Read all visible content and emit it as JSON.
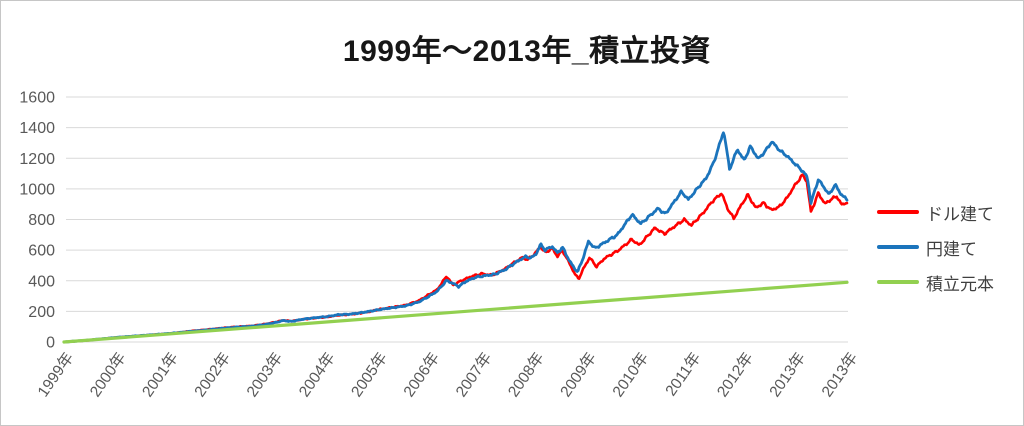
{
  "page": {
    "background": "#ffffff",
    "border_color": "#c6c6c6"
  },
  "chart_data": {
    "type": "line",
    "title": "1999年～2013年_積立投資",
    "xlabel": "",
    "ylabel": "",
    "x_range": [
      0,
      15
    ],
    "y_range": [
      0,
      1600
    ],
    "y_ticks": [
      0,
      200,
      400,
      600,
      800,
      1000,
      1200,
      1400,
      1600
    ],
    "x_tick_labels": [
      "1999年",
      "2000年",
      "2001年",
      "2002年",
      "2003年",
      "2004年",
      "2005年",
      "2006年",
      "2007年",
      "2008年",
      "2009年",
      "2010年",
      "2011年",
      "2012年",
      "2013年",
      "2013年"
    ],
    "grid": "horizontal",
    "legend_position": "right",
    "axis_label_color": "#595959",
    "grid_color": "#d9d9d9",
    "series": [
      {
        "name": "ドル建て",
        "color": "#ff0000",
        "points": [
          [
            0,
            0
          ],
          [
            0.35,
            8
          ],
          [
            0.7,
            19
          ],
          [
            1.0,
            29
          ],
          [
            1.4,
            39
          ],
          [
            1.8,
            49
          ],
          [
            2.1,
            57
          ],
          [
            2.45,
            72
          ],
          [
            2.75,
            81
          ],
          [
            3.0,
            90
          ],
          [
            3.3,
            99
          ],
          [
            3.6,
            105
          ],
          [
            3.85,
            117
          ],
          [
            4.05,
            130
          ],
          [
            4.2,
            142
          ],
          [
            4.35,
            136
          ],
          [
            4.6,
            149
          ],
          [
            4.85,
            158
          ],
          [
            5.05,
            164
          ],
          [
            5.25,
            175
          ],
          [
            5.45,
            179
          ],
          [
            5.65,
            187
          ],
          [
            5.85,
            198
          ],
          [
            6.05,
            214
          ],
          [
            6.3,
            227
          ],
          [
            6.55,
            241
          ],
          [
            6.8,
            270
          ],
          [
            7.0,
            312
          ],
          [
            7.15,
            342
          ],
          [
            7.33,
            430
          ],
          [
            7.45,
            372
          ],
          [
            7.6,
            398
          ],
          [
            7.8,
            428
          ],
          [
            8.0,
            446
          ],
          [
            8.2,
            436
          ],
          [
            8.45,
            478
          ],
          [
            8.62,
            518
          ],
          [
            8.78,
            552
          ],
          [
            8.88,
            538
          ],
          [
            9.0,
            570
          ],
          [
            9.13,
            622
          ],
          [
            9.22,
            584
          ],
          [
            9.35,
            612
          ],
          [
            9.45,
            560
          ],
          [
            9.55,
            598
          ],
          [
            9.68,
            516
          ],
          [
            9.79,
            442
          ],
          [
            9.86,
            412
          ],
          [
            9.95,
            478
          ],
          [
            10.07,
            552
          ],
          [
            10.2,
            492
          ],
          [
            10.35,
            545
          ],
          [
            10.62,
            598
          ],
          [
            10.88,
            670
          ],
          [
            11.02,
            632
          ],
          [
            11.32,
            745
          ],
          [
            11.5,
            706
          ],
          [
            11.88,
            800
          ],
          [
            12.02,
            762
          ],
          [
            12.25,
            845
          ],
          [
            12.42,
            918
          ],
          [
            12.6,
            972
          ],
          [
            12.7,
            880
          ],
          [
            12.83,
            806
          ],
          [
            12.95,
            880
          ],
          [
            13.1,
            962
          ],
          [
            13.25,
            876
          ],
          [
            13.4,
            908
          ],
          [
            13.55,
            862
          ],
          [
            13.7,
            882
          ],
          [
            13.85,
            940
          ],
          [
            13.99,
            1018
          ],
          [
            14.15,
            1092
          ],
          [
            14.23,
            1048
          ],
          [
            14.31,
            848
          ],
          [
            14.45,
            972
          ],
          [
            14.58,
            902
          ],
          [
            14.68,
            928
          ],
          [
            14.8,
            952
          ],
          [
            14.9,
            896
          ],
          [
            15,
            912
          ]
        ]
      },
      {
        "name": "円建て",
        "color": "#1b74bc",
        "points": [
          [
            0,
            0
          ],
          [
            0.35,
            9
          ],
          [
            0.7,
            20
          ],
          [
            1.0,
            30
          ],
          [
            1.4,
            40
          ],
          [
            1.8,
            50
          ],
          [
            2.1,
            58
          ],
          [
            2.45,
            70
          ],
          [
            2.75,
            79
          ],
          [
            3.0,
            88
          ],
          [
            3.3,
            97
          ],
          [
            3.6,
            103
          ],
          [
            3.85,
            114
          ],
          [
            4.05,
            127
          ],
          [
            4.2,
            140
          ],
          [
            4.35,
            134
          ],
          [
            4.6,
            150
          ],
          [
            4.85,
            160
          ],
          [
            5.05,
            166
          ],
          [
            5.25,
            178
          ],
          [
            5.45,
            181
          ],
          [
            5.65,
            189
          ],
          [
            5.85,
            200
          ],
          [
            6.05,
            212
          ],
          [
            6.3,
            224
          ],
          [
            6.55,
            236
          ],
          [
            6.8,
            262
          ],
          [
            7.0,
            300
          ],
          [
            7.15,
            332
          ],
          [
            7.33,
            402
          ],
          [
            7.45,
            383
          ],
          [
            7.56,
            362
          ],
          [
            7.7,
            396
          ],
          [
            7.88,
            422
          ],
          [
            8.05,
            432
          ],
          [
            8.25,
            442
          ],
          [
            8.45,
            472
          ],
          [
            8.6,
            508
          ],
          [
            8.75,
            540
          ],
          [
            8.85,
            558
          ],
          [
            8.95,
            548
          ],
          [
            9.05,
            578
          ],
          [
            9.13,
            638
          ],
          [
            9.22,
            600
          ],
          [
            9.35,
            625
          ],
          [
            9.45,
            582
          ],
          [
            9.55,
            618
          ],
          [
            9.68,
            532
          ],
          [
            9.77,
            485
          ],
          [
            9.84,
            458
          ],
          [
            9.93,
            535
          ],
          [
            10.05,
            658
          ],
          [
            10.17,
            612
          ],
          [
            10.32,
            642
          ],
          [
            10.6,
            700
          ],
          [
            10.88,
            832
          ],
          [
            11.05,
            772
          ],
          [
            11.38,
            872
          ],
          [
            11.52,
            836
          ],
          [
            11.83,
            982
          ],
          [
            11.96,
            930
          ],
          [
            12.2,
            1030
          ],
          [
            12.3,
            1068
          ],
          [
            12.45,
            1175
          ],
          [
            12.55,
            1282
          ],
          [
            12.64,
            1378
          ],
          [
            12.75,
            1128
          ],
          [
            12.9,
            1258
          ],
          [
            13.03,
            1186
          ],
          [
            13.15,
            1278
          ],
          [
            13.3,
            1196
          ],
          [
            13.42,
            1240
          ],
          [
            13.56,
            1308
          ],
          [
            13.72,
            1248
          ],
          [
            13.85,
            1215
          ],
          [
            13.99,
            1168
          ],
          [
            14.14,
            1120
          ],
          [
            14.24,
            1076
          ],
          [
            14.31,
            908
          ],
          [
            14.45,
            1062
          ],
          [
            14.56,
            1010
          ],
          [
            14.66,
            962
          ],
          [
            14.77,
            1028
          ],
          [
            14.88,
            968
          ],
          [
            15,
            928
          ]
        ]
      },
      {
        "name": "積立元本",
        "color": "#92d050",
        "points": [
          [
            0,
            0
          ],
          [
            15,
            390
          ]
        ]
      }
    ]
  }
}
